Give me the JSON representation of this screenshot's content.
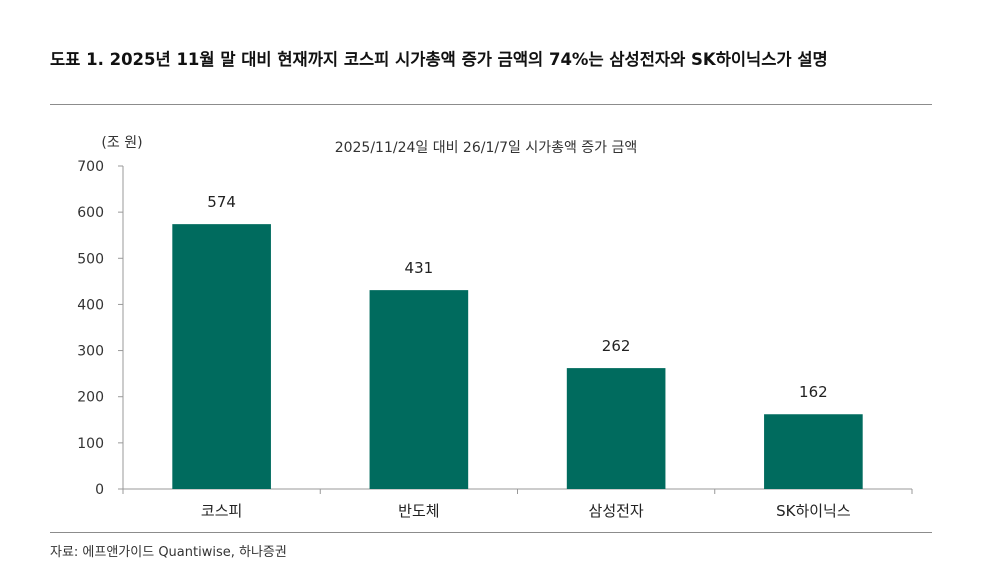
{
  "figure": {
    "title": "도표 1. 2025년 11월 말 대비 현재까지 코스피 시가총액 증가 금액의 74%는 삼성전자와 SK하이닉스가 설명",
    "source": "자료: 에프앤가이드 Quantiwise, 하나증권"
  },
  "chart_data": {
    "type": "bar",
    "title": "2025/11/24일 대비 26/1/7일 시가총액 증가 금액",
    "unit_label": "(조 원)",
    "xlabel": "",
    "ylabel": "",
    "categories": [
      "코스피",
      "반도체",
      "삼성전자",
      "SK하이닉스"
    ],
    "values": [
      574,
      431,
      262,
      162
    ],
    "data_labels": [
      "574",
      "431",
      "262",
      "162"
    ],
    "ylim": [
      0,
      700
    ],
    "yticks": [
      0,
      100,
      200,
      300,
      400,
      500,
      600,
      700
    ],
    "grid": false,
    "legend": "none",
    "bar_color": "#006b5e",
    "axis_color": "#999999"
  }
}
